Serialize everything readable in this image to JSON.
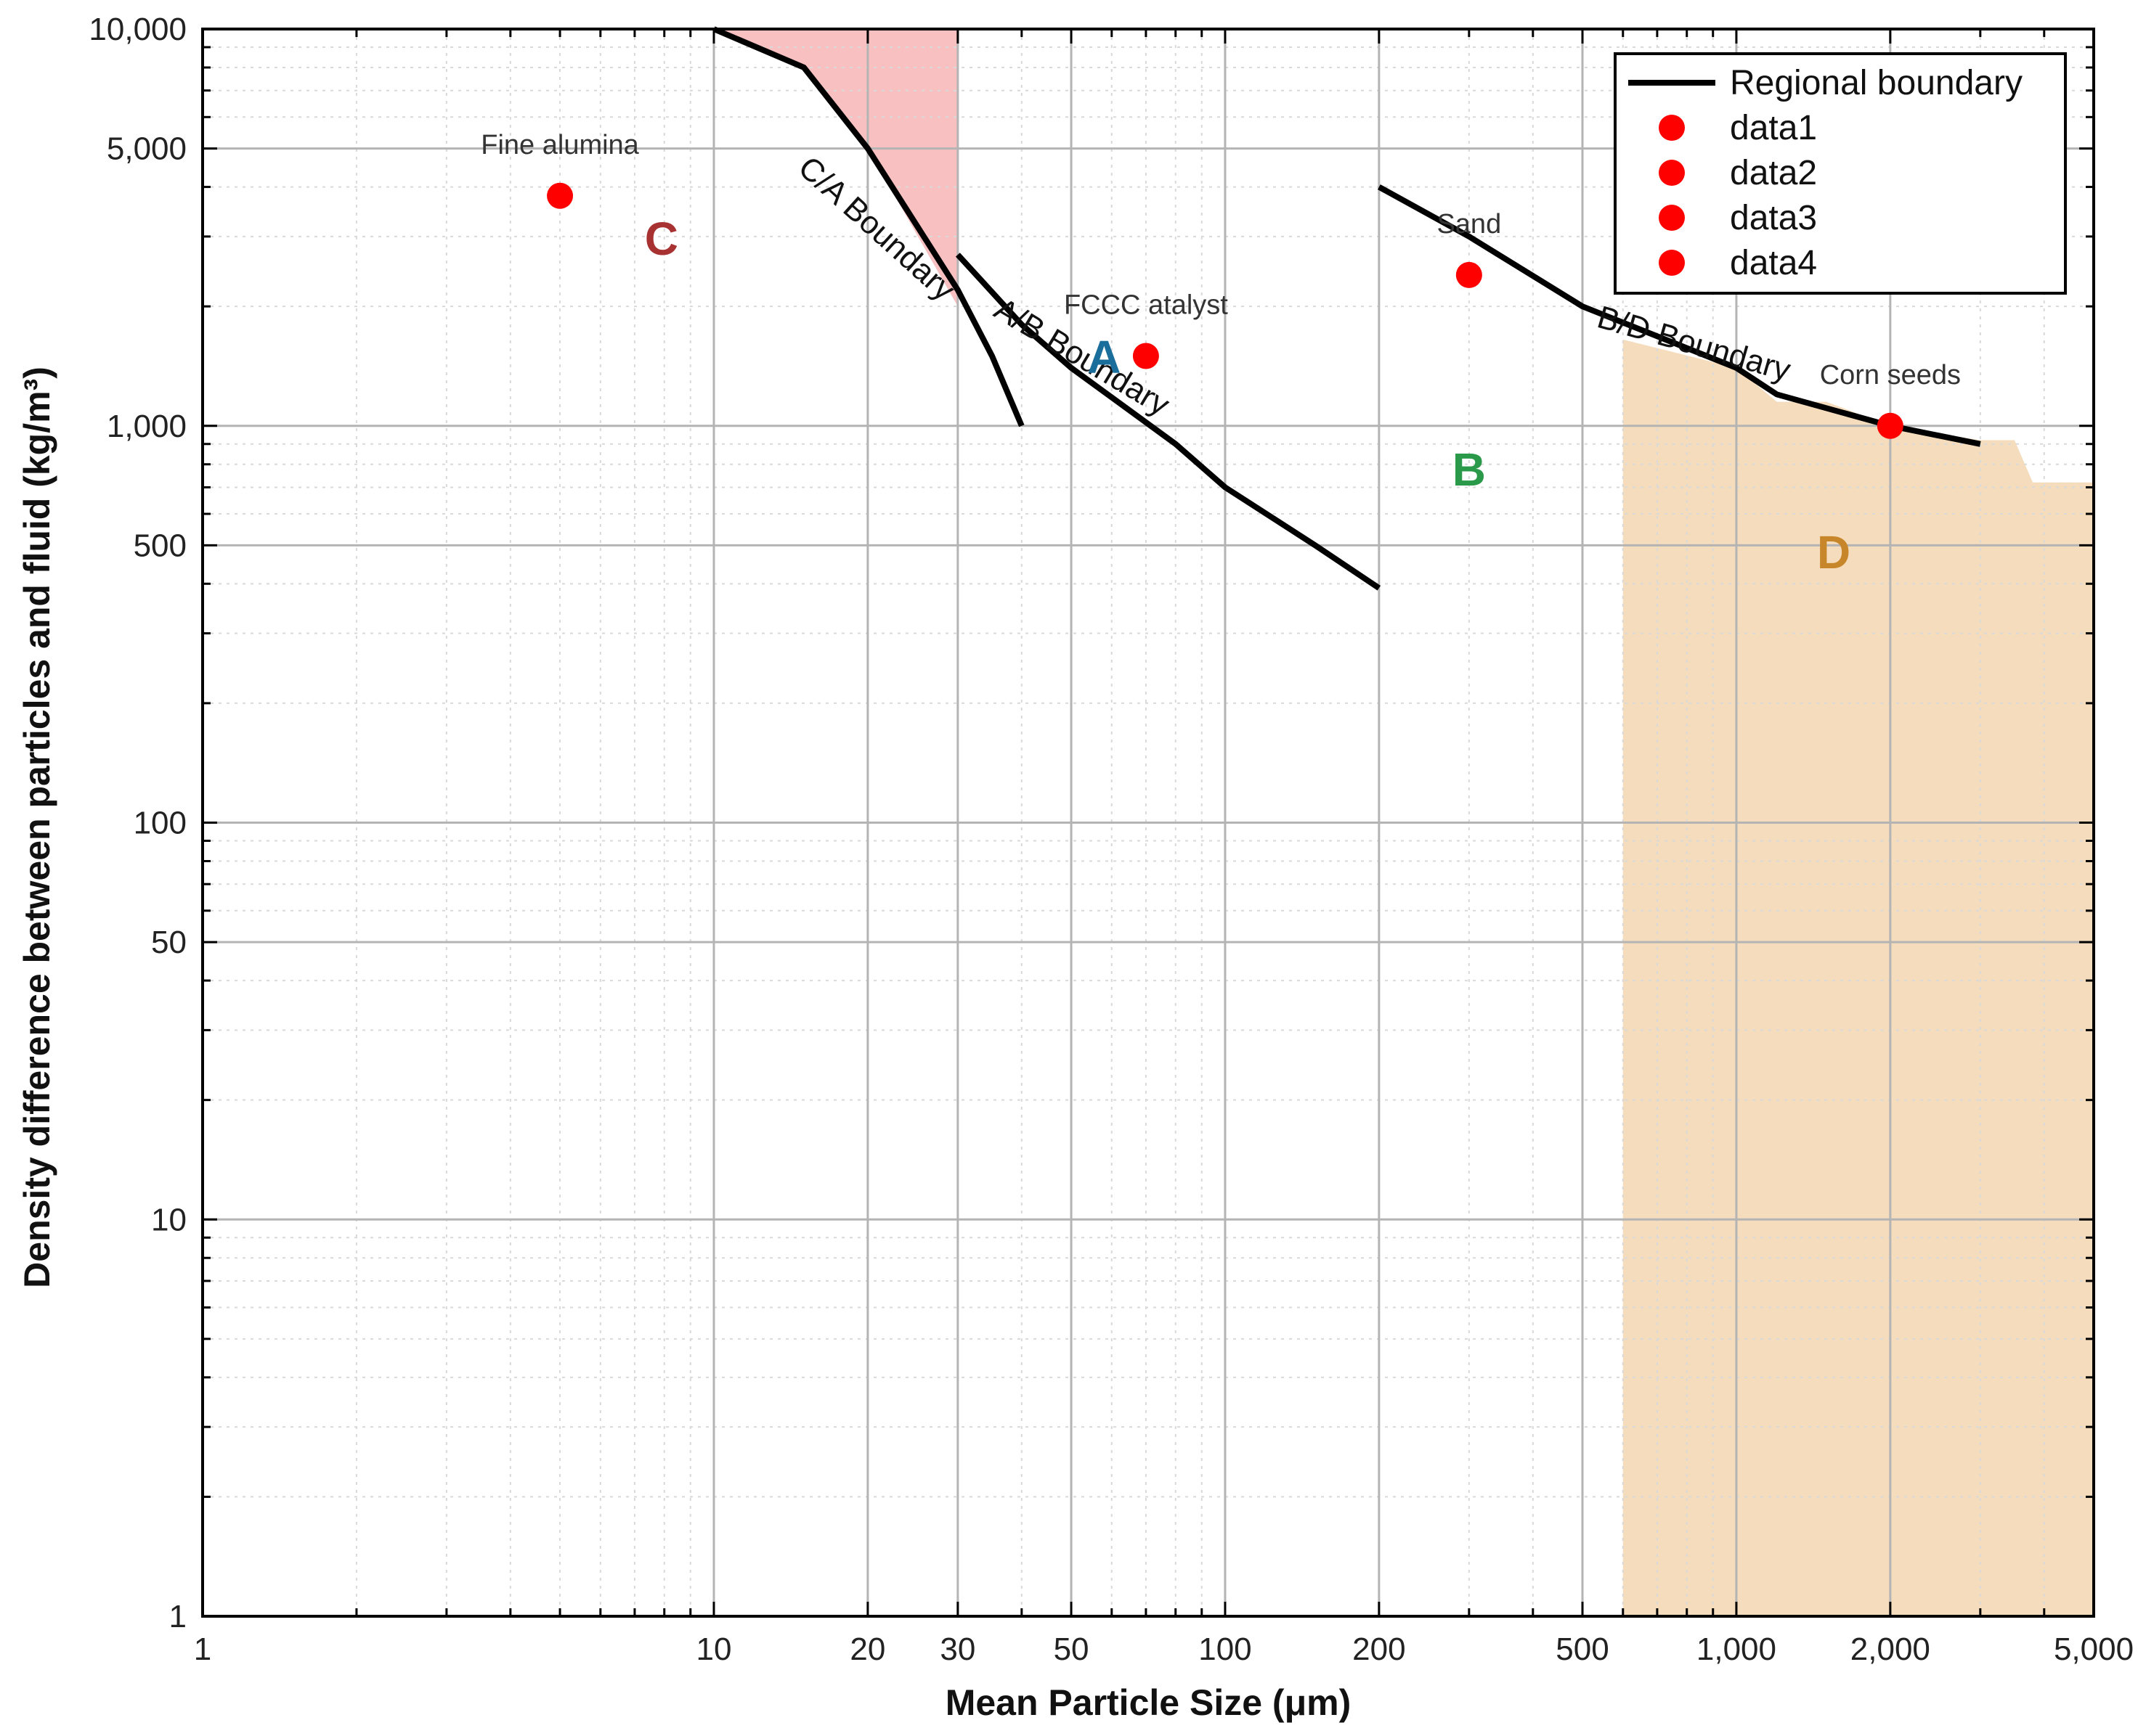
{
  "chart_data": {
    "type": "scatter",
    "scale": "log-log",
    "xlabel": "Mean Particle Size (μm)",
    "ylabel": "Density difference between particles and fluid (kg/m³)",
    "xlim": [
      1,
      5000
    ],
    "ylim": [
      1,
      10000
    ],
    "grid": true,
    "legend_position": "top-right",
    "x_major_ticks": [
      {
        "value": 1,
        "label": "1"
      },
      {
        "value": 10,
        "label": "10"
      },
      {
        "value": 20,
        "label": "20"
      },
      {
        "value": 30,
        "label": "30"
      },
      {
        "value": 50,
        "label": "50"
      },
      {
        "value": 100,
        "label": "100"
      },
      {
        "value": 200,
        "label": "200"
      },
      {
        "value": 500,
        "label": "500"
      },
      {
        "value": 1000,
        "label": "1,000"
      },
      {
        "value": 2000,
        "label": "2,000"
      },
      {
        "value": 5000,
        "label": "5,000"
      }
    ],
    "y_major_ticks": [
      {
        "value": 1,
        "label": "1"
      },
      {
        "value": 10,
        "label": "10"
      },
      {
        "value": 50,
        "label": "50"
      },
      {
        "value": 100,
        "label": "100"
      },
      {
        "value": 500,
        "label": "500"
      },
      {
        "value": 1000,
        "label": "1,000"
      },
      {
        "value": 5000,
        "label": "5,000"
      },
      {
        "value": 10000,
        "label": "10,000"
      }
    ],
    "boundaries": [
      {
        "name": "C/A boundary",
        "x": [
          10,
          15,
          20,
          30,
          35,
          40
        ],
        "y": [
          10000,
          8000,
          5000,
          2200,
          1500,
          1000
        ]
      },
      {
        "name": "A/B boundary",
        "x": [
          30,
          40,
          50,
          80,
          100,
          150,
          200
        ],
        "y": [
          2700,
          1800,
          1400,
          900,
          700,
          500,
          390
        ]
      },
      {
        "name": "B/D boundary",
        "x": [
          200,
          300,
          500,
          1000,
          1200,
          2000,
          3000
        ],
        "y": [
          4000,
          3000,
          2000,
          1400,
          1200,
          1000,
          900
        ]
      }
    ],
    "shaded_regions": [
      {
        "name": "C region fill",
        "color": "#f8c0c0",
        "x": [
          10,
          15,
          20,
          30,
          30
        ],
        "y_top": 10000,
        "y_bottom": [
          10000,
          8000,
          5000,
          2000,
          2000
        ]
      },
      {
        "name": "D region fill",
        "color": "#f4dcbc",
        "x": [
          600,
          1000,
          1200,
          1500,
          2000,
          3000,
          3500,
          3800,
          5000
        ],
        "y_top": [
          1650,
          1400,
          1150,
          1150,
          1000,
          920,
          920,
          720,
          720
        ],
        "y_bottom": 1
      }
    ],
    "series": [
      {
        "name": "data1",
        "x": [
          5
        ],
        "y": [
          3800
        ],
        "annotation": "Fine alumina",
        "color": "#ff0000"
      },
      {
        "name": "data2",
        "x": [
          70
        ],
        "y": [
          1500
        ],
        "annotation": "FCCC atalyst",
        "color": "#ff0000"
      },
      {
        "name": "data3",
        "x": [
          300
        ],
        "y": [
          2400
        ],
        "annotation": "Sand",
        "color": "#ff0000"
      },
      {
        "name": "data4",
        "x": [
          2000
        ],
        "y": [
          1000
        ],
        "annotation": "Corn seeds",
        "color": "#ff0000"
      }
    ],
    "boundary_labels": [
      {
        "text": "C/A Boundary",
        "x": 14.5,
        "y": 4400,
        "angle": 42
      },
      {
        "text": "A/B Boundary",
        "x": 35,
        "y": 1900,
        "angle": 31
      },
      {
        "text": "B/D Boundary",
        "x": 530,
        "y": 1780,
        "angle": 16
      }
    ],
    "region_labels": [
      {
        "text": "C",
        "x": 7.9,
        "y": 2900,
        "color": "#a83232"
      },
      {
        "text": "A",
        "x": 58,
        "y": 1460,
        "color": "#1a6e9c"
      },
      {
        "text": "B",
        "x": 300,
        "y": 760,
        "color": "#2a9a4a"
      },
      {
        "text": "D",
        "x": 1550,
        "y": 470,
        "color": "#c8862a"
      }
    ],
    "legend": [
      "Regional boundary",
      "data1",
      "data2",
      "data3",
      "data4"
    ]
  },
  "colors": {
    "boundary": "#000000",
    "marker": "#ff0000",
    "grid_major": "#b4b4b4",
    "grid_minor": "#d9d9d9"
  }
}
